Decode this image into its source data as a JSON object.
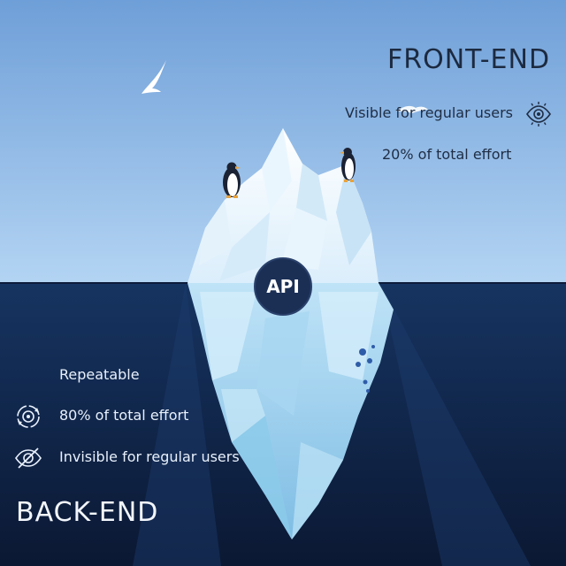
{
  "front": {
    "title": "FRONT-END",
    "visible": "Visible for regular users",
    "effort": "20% of total effort"
  },
  "api": {
    "label": "API"
  },
  "back": {
    "title": "BACK-END",
    "repeatable": "Repeatable",
    "effort": "80% of total effort",
    "invisible": "Invisible for regular users"
  },
  "icons": {
    "front_visible": "eye-icon",
    "back_effort": "cycle-icon",
    "back_invisible": "eye-off-icon"
  },
  "colors": {
    "sky_top": "#6f9fd8",
    "sky_bottom": "#a9cdf1",
    "ocean_top": "#14305b",
    "ocean_bottom": "#0c1a36",
    "api_fill": "#1b2f55"
  }
}
